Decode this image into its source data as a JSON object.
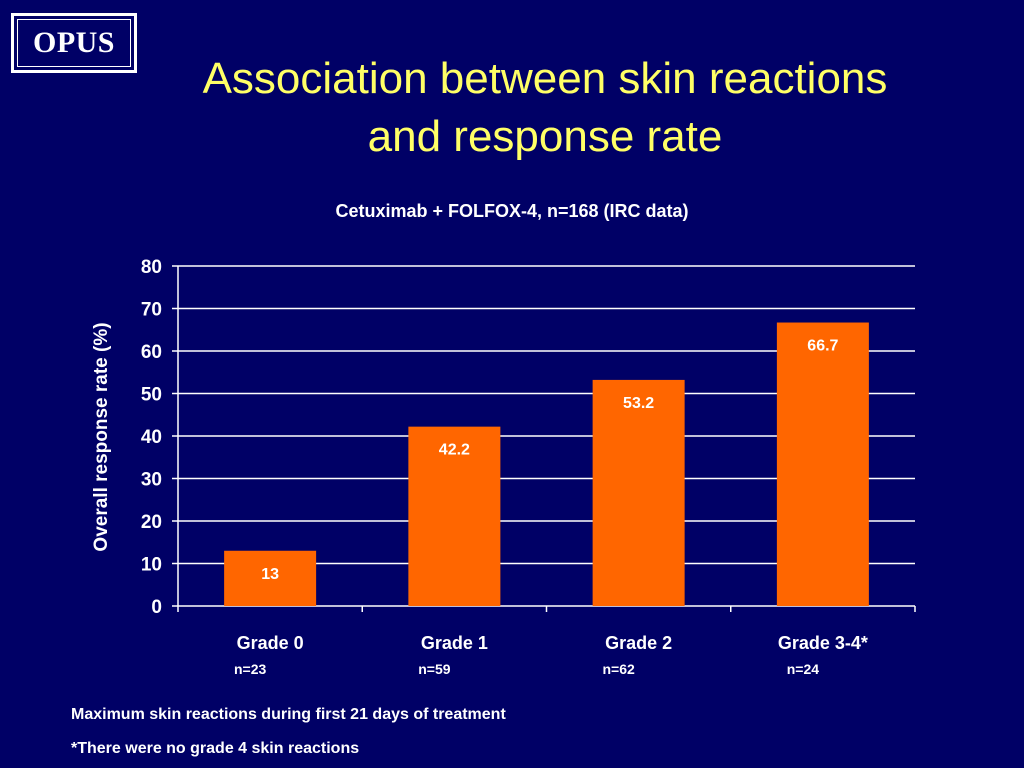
{
  "logo": {
    "text": "OPUS"
  },
  "title": {
    "line1": "Association between skin reactions",
    "line2": "and response rate"
  },
  "colors": {
    "background": "#000066",
    "title": "#ffff66",
    "bar": "#ff6600",
    "text": "#ffffff"
  },
  "chart_data": {
    "type": "bar",
    "title": "Cetuximab + FOLFOX-4, n=168 (IRC data)",
    "xlabel": "",
    "ylabel": "Overall response rate (%)",
    "ylim": [
      0,
      80
    ],
    "yticks": [
      0,
      10,
      20,
      30,
      40,
      50,
      60,
      70,
      80
    ],
    "grid": true,
    "categories": [
      "Grade 0",
      "Grade 1",
      "Grade 2",
      "Grade 3-4*"
    ],
    "category_notes": [
      "n=23",
      "n=59",
      "n=62",
      "n=24"
    ],
    "values": [
      13,
      42.2,
      53.2,
      66.7
    ],
    "data_labels": [
      "13",
      "42.2",
      "53.2",
      "66.7"
    ]
  },
  "footnotes": [
    "Maximum skin reactions during first  21 days of treatment",
    "*There were no grade 4 skin reactions"
  ]
}
